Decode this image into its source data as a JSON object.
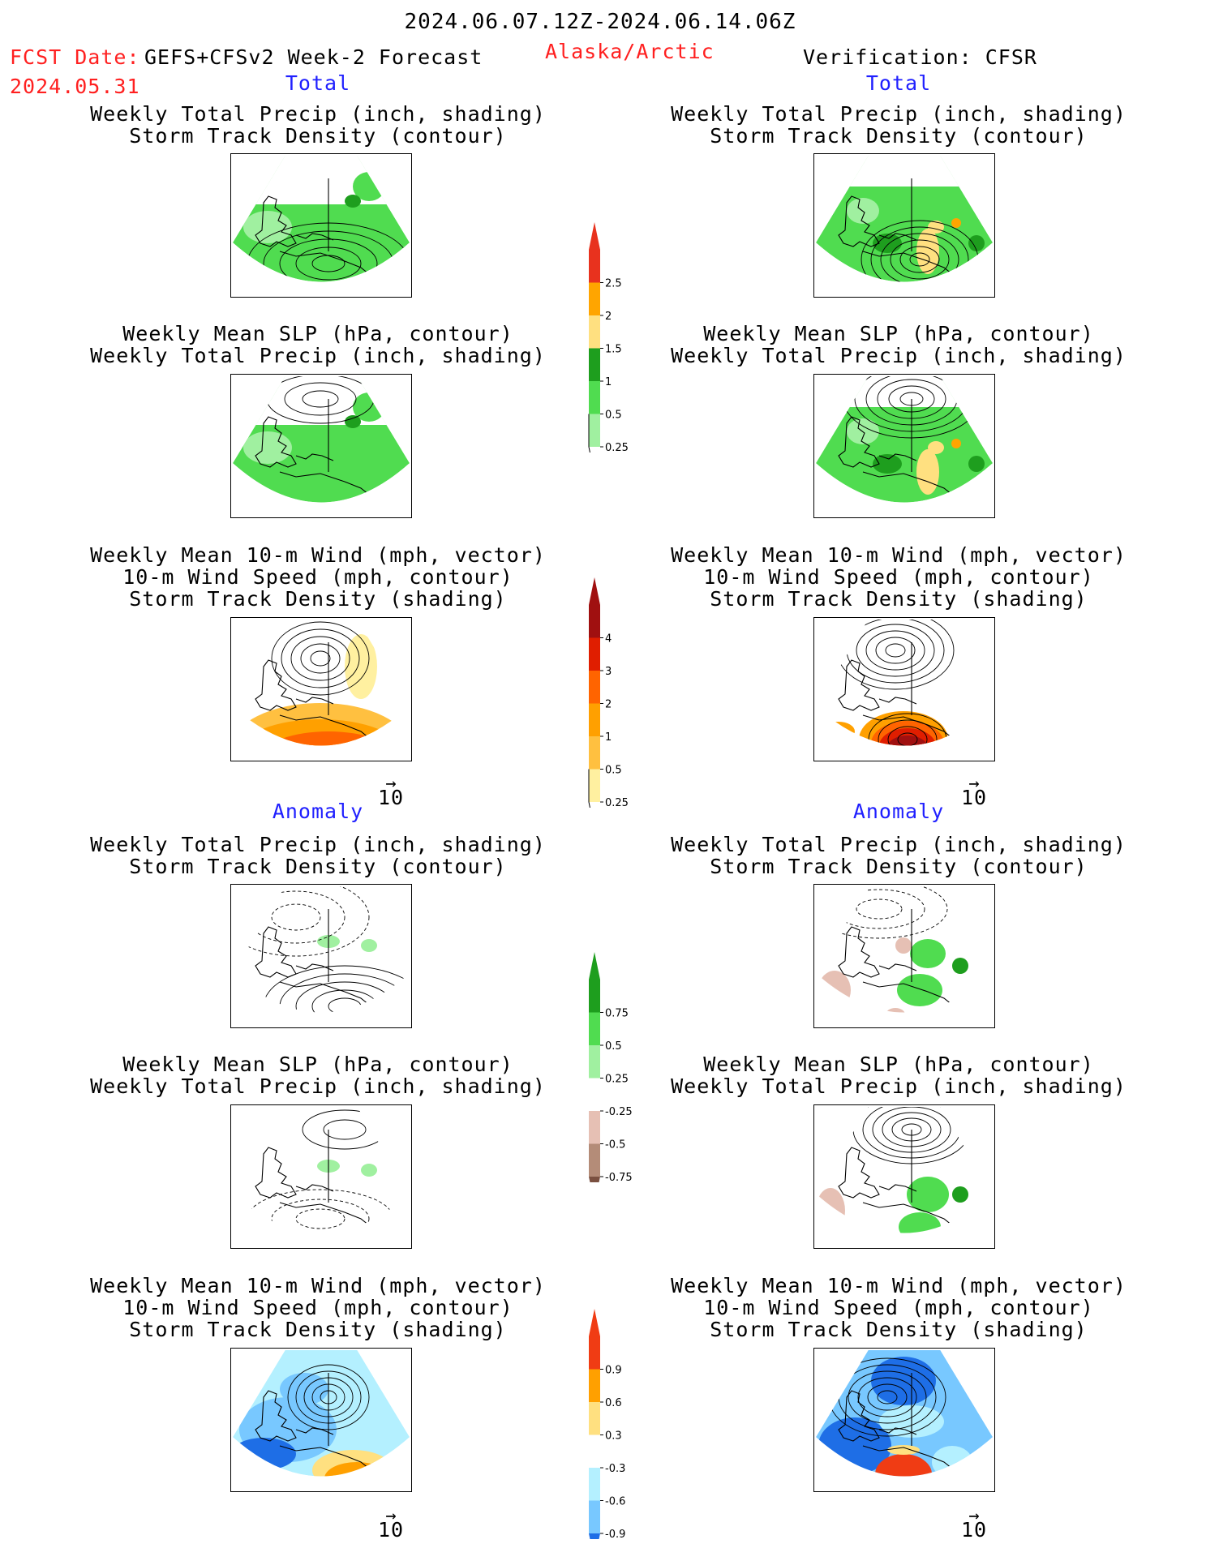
{
  "header": {
    "title": "2024.06.07.12Z-2024.06.14.06Z",
    "fcst_label": "FCST Date:",
    "fcst_model": "GEFS+CFSv2 Week-2 Forecast",
    "fcst_date": "2024.05.31",
    "region": "Alaska/Arctic",
    "verification": "Verification: CFSR"
  },
  "sections": {
    "total": "Total",
    "anomaly": "Anomaly"
  },
  "panel_titles": {
    "precip_storm": [
      "Weekly Total Precip (inch, shading)",
      "Storm Track Density (contour)"
    ],
    "slp_precip": [
      "Weekly Mean SLP (hPa, contour)",
      "Weekly Total Precip (inch, shading)"
    ],
    "wind_storm": [
      "Weekly Mean 10-m Wind (mph, vector)",
      "10-m Wind Speed (mph, contour)",
      "Storm Track Density (shading)"
    ]
  },
  "vector_ref": "10",
  "colorbars": {
    "precip_total": {
      "labels": [
        "2.5",
        "2",
        "1.5",
        "1",
        "0.5",
        "0.25"
      ],
      "colors": [
        "#e8321e",
        "#ffa500",
        "#ffe080",
        "#1e9e1e",
        "#50dc50",
        "#a0f0a0"
      ]
    },
    "storm_total": {
      "labels": [
        "4",
        "3",
        "2",
        "1",
        "0.5",
        "0.25"
      ],
      "colors": [
        "#a01010",
        "#e01e00",
        "#ff6400",
        "#ffa000",
        "#ffc040",
        "#fff0a0"
      ]
    },
    "precip_anom": {
      "labels": [
        "0.75",
        "0.5",
        "0.25",
        "-0.25",
        "-0.5",
        "-0.75"
      ],
      "colors": [
        "#1e9e1e",
        "#50dc50",
        "#a0f0a0",
        "#ffffff",
        "#e6c0b4",
        "#b48c78",
        "#7a5040"
      ]
    },
    "storm_anom": {
      "labels": [
        "0.9",
        "0.6",
        "0.3",
        "-0.3",
        "-0.6",
        "-0.9"
      ],
      "colors": [
        "#f03c14",
        "#ffa000",
        "#ffe080",
        "#ffffff",
        "#b4f0ff",
        "#78c8ff",
        "#1e6ee6"
      ]
    }
  }
}
